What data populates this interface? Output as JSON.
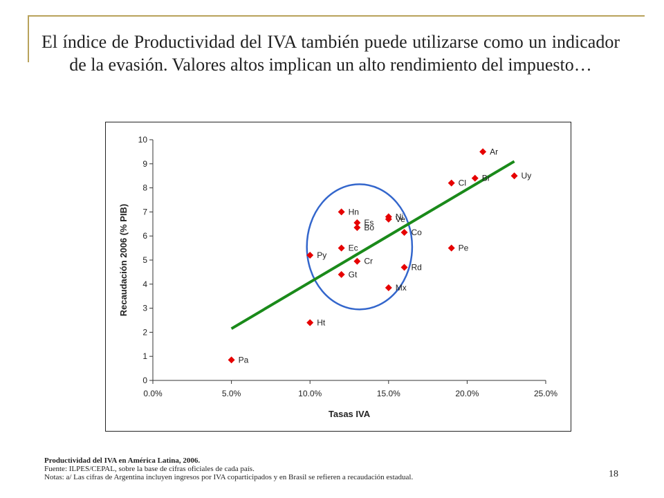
{
  "slide": {
    "title": "El índice de Productividad del IVA también puede utilizarse como un indicador de la evasión. Valores altos implican un alto rendimiento del impuesto…",
    "page_number": "18"
  },
  "footer": {
    "caption": "Productividad del IVA en América Latina, 2006.",
    "source": "Fuente: ILPES/CEPAL, sobre la base de cifras oficiales de cada país.",
    "notes": "Notas: a/ Las cifras de Argentina incluyen ingresos por IVA coparticipados y en Brasil se refieren a recaudación estadual."
  },
  "colors": {
    "marker": "#e60000",
    "trendline": "#1a8a1a",
    "circle": "#3366cc"
  },
  "chart_data": {
    "type": "scatter",
    "xlabel": "Tasas IVA",
    "ylabel": "Recaudación 2006 (% PIB)",
    "xlim": [
      0,
      0.25
    ],
    "ylim": [
      0,
      10
    ],
    "xticks": [
      0,
      0.05,
      0.1,
      0.15,
      0.2,
      0.25
    ],
    "xtick_labels": [
      "0.0%",
      "5.0%",
      "10.0%",
      "15.0%",
      "20.0%",
      "25.0%"
    ],
    "yticks": [
      0,
      1,
      2,
      3,
      4,
      5,
      6,
      7,
      8,
      9,
      10
    ],
    "ytick_labels": [
      "0",
      "1",
      "2",
      "3",
      "4",
      "5",
      "6",
      "7",
      "8",
      "9",
      "10"
    ],
    "grid": false,
    "points": [
      {
        "label": "Ar",
        "x": 0.21,
        "y": 9.5
      },
      {
        "label": "Br",
        "x": 0.205,
        "y": 8.4
      },
      {
        "label": "Uy",
        "x": 0.23,
        "y": 8.5
      },
      {
        "label": "Cl",
        "x": 0.19,
        "y": 8.2
      },
      {
        "label": "Ni",
        "x": 0.15,
        "y": 6.8
      },
      {
        "label": "Ve",
        "x": 0.15,
        "y": 6.7
      },
      {
        "label": "Hn",
        "x": 0.12,
        "y": 7.0
      },
      {
        "label": "Es",
        "x": 0.13,
        "y": 6.55
      },
      {
        "label": "Bo",
        "x": 0.13,
        "y": 6.35
      },
      {
        "label": "Co",
        "x": 0.16,
        "y": 6.15
      },
      {
        "label": "Ec",
        "x": 0.12,
        "y": 5.5
      },
      {
        "label": "Pe",
        "x": 0.19,
        "y": 5.5
      },
      {
        "label": "Py",
        "x": 0.1,
        "y": 5.2
      },
      {
        "label": "Cr",
        "x": 0.13,
        "y": 4.95
      },
      {
        "label": "Rd",
        "x": 0.16,
        "y": 4.7
      },
      {
        "label": "Gt",
        "x": 0.12,
        "y": 4.4
      },
      {
        "label": "Mx",
        "x": 0.15,
        "y": 3.85
      },
      {
        "label": "Ht",
        "x": 0.1,
        "y": 2.4
      },
      {
        "label": "Pa",
        "x": 0.05,
        "y": 0.85
      }
    ],
    "trendline": {
      "x": [
        0.05,
        0.23
      ],
      "y": [
        2.15,
        9.1
      ]
    },
    "circle": {
      "cx": 0.1315,
      "cy": 5.55,
      "rx": 0.0335,
      "ry": 2.6
    }
  }
}
